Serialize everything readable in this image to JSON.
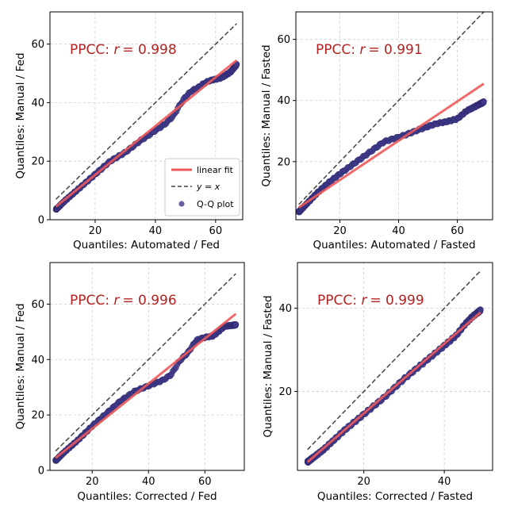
{
  "colors": {
    "fit": "#ee5a5a",
    "identity": "#444444",
    "points": "#3f3a8a",
    "points_edge": "#2f2a70",
    "ppcc_text": "#b22222",
    "grid": "#cccccc"
  },
  "legend": {
    "linear_fit": "linear fit",
    "identity": "y = x",
    "qq": "Q-Q plot"
  },
  "chart_data": [
    {
      "type": "scatter",
      "title": "",
      "xlabel": "Quantiles: Automated / Fed",
      "ylabel": "Quantiles: Manual / Fed",
      "xlim": [
        5,
        69
      ],
      "ylim": [
        0,
        71
      ],
      "xticks": [
        20,
        40,
        60
      ],
      "yticks": [
        0,
        20,
        40,
        60
      ],
      "ppcc_prefix": "PPCC: ",
      "ppcc_var": "r",
      "ppcc_value": "= 0.998",
      "fit_line": {
        "x": [
          7,
          67
        ],
        "y": [
          4.5,
          54.5
        ]
      },
      "identity_line": {
        "x": [
          7,
          67
        ],
        "y": [
          7,
          67
        ]
      },
      "qq_curve": {
        "x": [
          7,
          10,
          15,
          20,
          25,
          30,
          35,
          38,
          40,
          43,
          46,
          48,
          50,
          52,
          54,
          56,
          58,
          60,
          62,
          65,
          67
        ],
        "y": [
          3.5,
          6.5,
          11,
          15.5,
          20,
          23,
          27,
          29,
          30.5,
          32.5,
          35.5,
          39,
          42,
          44,
          45,
          46.5,
          47.5,
          48,
          48.5,
          50.5,
          53
        ]
      },
      "has_legend": true,
      "legend_position": "lower-right"
    },
    {
      "type": "scatter",
      "title": "",
      "xlabel": "Quantiles: Automated / Fasted",
      "ylabel": "Quantiles: Manual / Fasted",
      "xlim": [
        5,
        72
      ],
      "ylim": [
        1,
        69
      ],
      "xticks": [
        20,
        40,
        60
      ],
      "yticks": [
        20,
        40,
        60
      ],
      "ppcc_prefix": "PPCC: ",
      "ppcc_var": "r",
      "ppcc_value": "= 0.991",
      "fit_line": {
        "x": [
          6,
          69
        ],
        "y": [
          5,
          45.5
        ]
      },
      "identity_line": {
        "x": [
          6,
          69
        ],
        "y": [
          6,
          69
        ]
      },
      "qq_curve": {
        "x": [
          6,
          8,
          12,
          16,
          20,
          25,
          30,
          35,
          40,
          43,
          47,
          50,
          53,
          56,
          60,
          63,
          66,
          69
        ],
        "y": [
          3.5,
          5.5,
          9.5,
          13,
          16,
          19.5,
          23,
          26.5,
          28,
          29,
          30.5,
          31.5,
          32.5,
          33,
          34,
          36.5,
          38,
          39.5
        ]
      },
      "has_legend": false
    },
    {
      "type": "scatter",
      "title": "",
      "xlabel": "Quantiles: Corrected / Fed",
      "ylabel": "Quantiles: Manual / Fed",
      "xlim": [
        5,
        74
      ],
      "ylim": [
        0,
        75
      ],
      "xticks": [
        20,
        40,
        60
      ],
      "yticks": [
        0,
        20,
        40,
        60
      ],
      "ppcc_prefix": "PPCC: ",
      "ppcc_var": "r",
      "ppcc_value": "= 0.996",
      "fit_line": {
        "x": [
          7,
          71
        ],
        "y": [
          4.5,
          56.5
        ]
      },
      "identity_line": {
        "x": [
          7,
          71
        ],
        "y": [
          7,
          71
        ]
      },
      "qq_curve": {
        "x": [
          7,
          10,
          15,
          20,
          25,
          30,
          35,
          40,
          45,
          48,
          51,
          54,
          57,
          60,
          63,
          67,
          71
        ],
        "y": [
          3.5,
          6.5,
          11,
          16,
          20.5,
          25,
          28.5,
          30.5,
          32.5,
          34.5,
          39.5,
          42.5,
          47,
          48,
          48.5,
          52,
          52.5
        ]
      },
      "has_legend": false
    },
    {
      "type": "scatter",
      "title": "",
      "xlabel": "Quantiles: Corrected / Fasted",
      "ylabel": "Quantiles: Manual / Fasted",
      "xlim": [
        3.5,
        52
      ],
      "ylim": [
        1,
        51
      ],
      "xticks": [
        20,
        40
      ],
      "yticks": [
        20,
        40
      ],
      "ppcc_prefix": "PPCC: ",
      "ppcc_var": "r",
      "ppcc_value": "= 0.999",
      "fit_line": {
        "x": [
          6,
          49
        ],
        "y": [
          3,
          39
        ]
      },
      "identity_line": {
        "x": [
          6,
          49
        ],
        "y": [
          6,
          49
        ]
      },
      "qq_curve": {
        "x": [
          6,
          10,
          15,
          20,
          25,
          30,
          35,
          40,
          43,
          45,
          47,
          49
        ],
        "y": [
          3,
          6,
          10.5,
          14.5,
          18.5,
          23,
          27,
          31,
          33.5,
          36,
          38,
          39.5
        ]
      },
      "has_legend": false
    }
  ]
}
